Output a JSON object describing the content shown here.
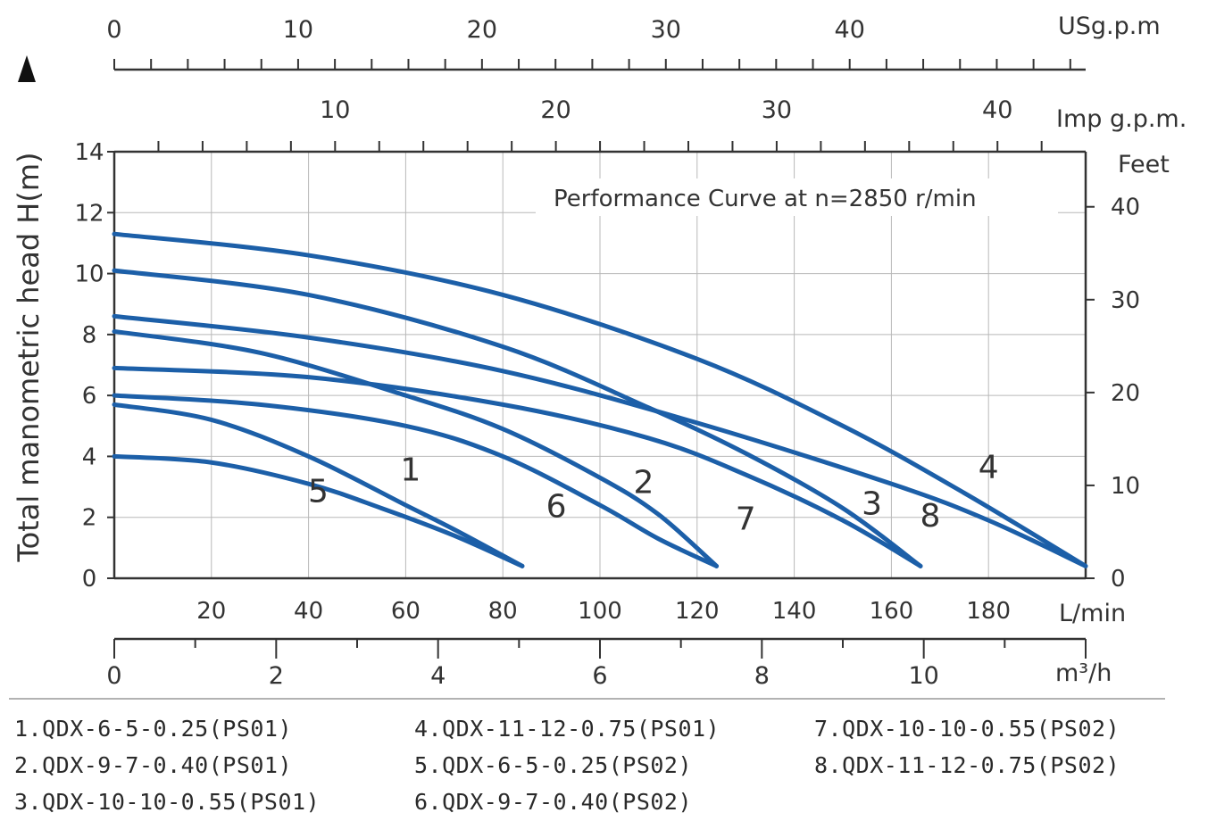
{
  "chart_data": {
    "type": "line",
    "title": "Performance Curve at n=2850 r/min",
    "ylabel": "Total manometric head H(m)",
    "x_axis_lmin": {
      "label": "L/min",
      "ticks": [
        20,
        40,
        60,
        80,
        100,
        120,
        140,
        160,
        180
      ],
      "range": [
        0,
        200
      ]
    },
    "x_axis_m3h": {
      "label": "m³/h",
      "ticks": [
        0,
        2,
        4,
        6,
        8,
        10
      ],
      "range": [
        0,
        12
      ]
    },
    "x_axis_usgpm": {
      "label": "USg.p.m",
      "ticks": [
        0,
        10,
        20,
        30,
        40
      ]
    },
    "x_axis_impgpm": {
      "label": "Imp g.p.m.",
      "ticks": [
        10,
        20,
        30,
        40
      ]
    },
    "y_axis_m": {
      "label": "H(m)",
      "ticks": [
        0,
        2,
        4,
        6,
        8,
        10,
        12,
        14
      ],
      "range": [
        0,
        14
      ]
    },
    "y_axis_feet": {
      "label": "Feet",
      "ticks": [
        0,
        10,
        20,
        30,
        40
      ]
    },
    "grid": true,
    "series": [
      {
        "name": "1",
        "x": [
          0,
          20,
          40,
          60,
          70,
          84
        ],
        "y": [
          5.7,
          5.2,
          4.0,
          2.4,
          1.6,
          0.4
        ]
      },
      {
        "name": "2",
        "x": [
          0,
          30,
          60,
          80,
          100,
          112,
          124
        ],
        "y": [
          8.1,
          7.4,
          6.0,
          4.9,
          3.3,
          2.1,
          0.4
        ]
      },
      {
        "name": "3",
        "x": [
          0,
          40,
          80,
          110,
          130,
          150,
          166
        ],
        "y": [
          10.1,
          9.3,
          7.6,
          5.6,
          4.1,
          2.3,
          0.4
        ]
      },
      {
        "name": "4",
        "x": [
          0,
          40,
          80,
          120,
          150,
          175,
          200
        ],
        "y": [
          11.3,
          10.6,
          9.3,
          7.2,
          5.0,
          2.8,
          0.4
        ]
      },
      {
        "name": "5",
        "x": [
          0,
          20,
          40,
          55,
          70,
          84
        ],
        "y": [
          4.0,
          3.8,
          3.1,
          2.3,
          1.4,
          0.4
        ]
      },
      {
        "name": "6",
        "x": [
          0,
          30,
          60,
          80,
          100,
          112,
          124
        ],
        "y": [
          6.0,
          5.7,
          5.0,
          4.0,
          2.4,
          1.3,
          0.4
        ]
      },
      {
        "name": "7",
        "x": [
          0,
          40,
          80,
          110,
          130,
          150,
          166
        ],
        "y": [
          6.9,
          6.6,
          5.7,
          4.6,
          3.4,
          1.9,
          0.4
        ]
      },
      {
        "name": "8",
        "x": [
          0,
          40,
          80,
          120,
          160,
          180,
          200
        ],
        "y": [
          8.6,
          7.9,
          6.8,
          5.1,
          3.1,
          1.9,
          0.4
        ]
      }
    ],
    "curve_labels": [
      {
        "text": "1",
        "x": 61,
        "y": 3.2
      },
      {
        "text": "2",
        "x": 109,
        "y": 2.8
      },
      {
        "text": "3",
        "x": 156,
        "y": 2.1
      },
      {
        "text": "4",
        "x": 180,
        "y": 3.3
      },
      {
        "text": "5",
        "x": 42,
        "y": 2.5
      },
      {
        "text": "6",
        "x": 91,
        "y": 2.0
      },
      {
        "text": "7",
        "x": 130,
        "y": 1.6
      },
      {
        "text": "8",
        "x": 168,
        "y": 1.7
      }
    ],
    "curve_color": "#1c5fa8"
  },
  "legend": [
    "1.QDX-6-5-0.25(PS01)",
    "2.QDX-9-7-0.40(PS01)",
    "3.QDX-10-10-0.55(PS01)",
    "4.QDX-11-12-0.75(PS01)",
    "5.QDX-6-5-0.25(PS02)",
    "6.QDX-9-7-0.40(PS02)",
    "7.QDX-10-10-0.55(PS02)",
    "8.QDX-11-12-0.75(PS02)"
  ]
}
